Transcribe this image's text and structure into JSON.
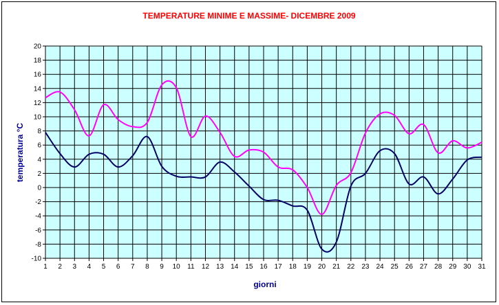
{
  "chart_data": {
    "type": "line",
    "title": "TEMPERATURE MINIME E MASSIME- DICEMBRE 2009",
    "xlabel": "giorni",
    "ylabel": "temperatura °C",
    "x": [
      1,
      2,
      3,
      4,
      5,
      6,
      7,
      8,
      9,
      10,
      11,
      12,
      13,
      14,
      15,
      16,
      17,
      18,
      19,
      20,
      21,
      22,
      23,
      24,
      25,
      26,
      27,
      28,
      29,
      30,
      31
    ],
    "x_ticks": [
      "1",
      "2",
      "3",
      "4",
      "5",
      "6",
      "7",
      "8",
      "9",
      "10",
      "11",
      "12",
      "13",
      "14",
      "15",
      "16",
      "17",
      "18",
      "19",
      "20",
      "21",
      "22",
      "23",
      "24",
      "25",
      "26",
      "27",
      "28",
      "29",
      "30",
      "31"
    ],
    "y_ticks": [
      "20",
      "18",
      "16",
      "14",
      "12",
      "10",
      "8",
      "6",
      "4",
      "2",
      "0",
      "-2",
      "-4",
      "-6",
      "-8",
      "-10"
    ],
    "ylim": [
      -10,
      20
    ],
    "xlim": [
      1,
      31
    ],
    "grid": true,
    "legend": "none",
    "plot_background": "#ccffff",
    "series": [
      {
        "color": "#ff00ff",
        "values": [
          12.7,
          13.5,
          11.0,
          7.3,
          11.7,
          9.6,
          8.6,
          9.2,
          14.5,
          14.1,
          7.2,
          10.1,
          7.8,
          4.4,
          5.3,
          5.0,
          2.9,
          2.5,
          0.0,
          -3.8,
          0.3,
          2.1,
          7.7,
          10.4,
          10.2,
          7.6,
          8.9,
          4.9,
          6.6,
          5.6,
          6.4
        ]
      },
      {
        "color": "#000066",
        "values": [
          7.8,
          4.8,
          2.9,
          4.7,
          4.7,
          2.9,
          4.5,
          7.2,
          3.0,
          1.6,
          1.5,
          1.5,
          3.6,
          2.2,
          0.2,
          -1.7,
          -1.8,
          -2.6,
          -3.2,
          -8.7,
          -7.7,
          0.2,
          2.0,
          5.2,
          4.8,
          0.5,
          1.5,
          -0.9,
          1.2,
          3.9,
          4.3
        ]
      }
    ]
  }
}
